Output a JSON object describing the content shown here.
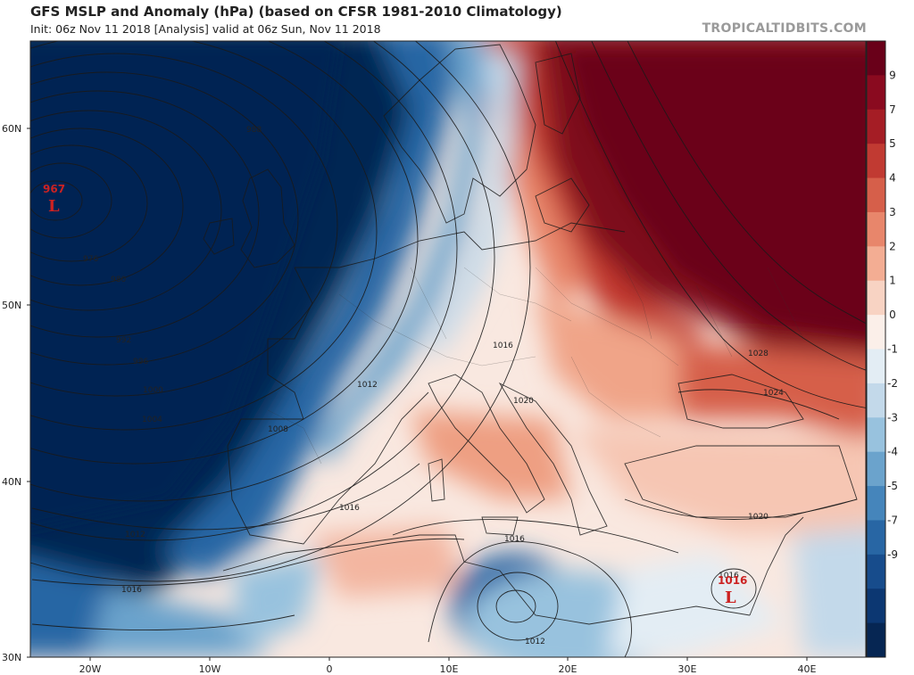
{
  "title": "GFS MSLP and Anomaly (hPa) (based on CFSR 1981-2010 Climatology)",
  "subtitle": "Init: 06z Nov 11 2018   [Analysis]   valid at 06z Sun, Nov 11 2018",
  "brand": "TROPICALTIDBITS.COM",
  "colorbar": {
    "labels": [
      "9",
      "7",
      "5",
      "4",
      "3",
      "2",
      "1",
      "0",
      "-1",
      "-2",
      "-3",
      "-4",
      "-5",
      "-7",
      "-9"
    ],
    "colors": [
      "#690019",
      "#8a0a1f",
      "#a51d25",
      "#c13a32",
      "#d65f4a",
      "#e8866b",
      "#f3ad93",
      "#f8d3c3",
      "#fbefe9",
      "#e3edf4",
      "#c3d9ea",
      "#98c2de",
      "#6ba3cc",
      "#4585bb",
      "#2866a4",
      "#174c8c",
      "#0c3772",
      "#062653"
    ]
  },
  "axes": {
    "lat_labels": [
      "60N",
      "50N",
      "40N",
      "30N"
    ],
    "lon_labels": [
      "20W",
      "10W",
      "0",
      "10E",
      "20E",
      "30E",
      "40E"
    ]
  },
  "pressure_centers": [
    {
      "type": "L",
      "value": "967"
    },
    {
      "type": "L",
      "value": "1016"
    }
  ],
  "isobar_labels": [
    "988",
    "976",
    "980",
    "992",
    "996",
    "1000",
    "1004",
    "1008",
    "1012",
    "1016",
    "1016",
    "1012",
    "1016",
    "1020",
    "1016",
    "1012",
    "1016",
    "1020",
    "1024",
    "1028"
  ]
}
